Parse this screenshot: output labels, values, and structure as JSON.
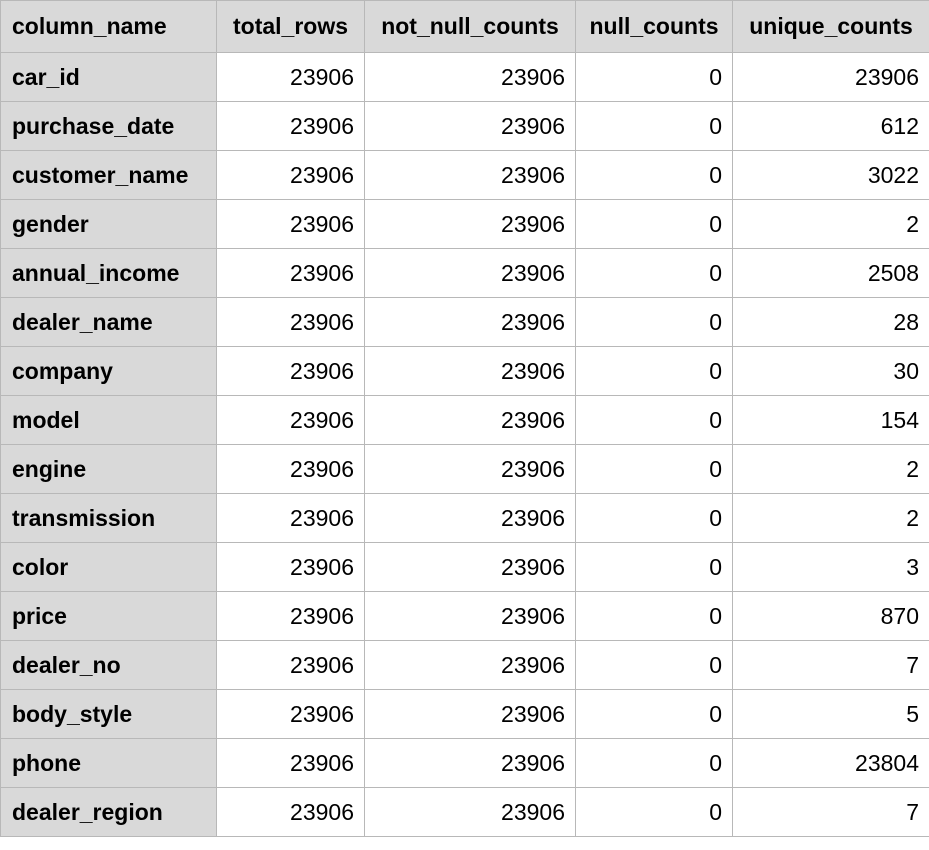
{
  "table": {
    "columns": [
      "column_name",
      "total_rows",
      "not_null_counts",
      "null_counts",
      "unique_counts"
    ],
    "rows": [
      [
        "car_id",
        "23906",
        "23906",
        "0",
        "23906"
      ],
      [
        "purchase_date",
        "23906",
        "23906",
        "0",
        "612"
      ],
      [
        "customer_name",
        "23906",
        "23906",
        "0",
        "3022"
      ],
      [
        "gender",
        "23906",
        "23906",
        "0",
        "2"
      ],
      [
        "annual_income",
        "23906",
        "23906",
        "0",
        "2508"
      ],
      [
        "dealer_name",
        "23906",
        "23906",
        "0",
        "28"
      ],
      [
        "company",
        "23906",
        "23906",
        "0",
        "30"
      ],
      [
        "model",
        "23906",
        "23906",
        "0",
        "154"
      ],
      [
        "engine",
        "23906",
        "23906",
        "0",
        "2"
      ],
      [
        "transmission",
        "23906",
        "23906",
        "0",
        "2"
      ],
      [
        "color",
        "23906",
        "23906",
        "0",
        "3"
      ],
      [
        "price",
        "23906",
        "23906",
        "0",
        "870"
      ],
      [
        "dealer_no",
        "23906",
        "23906",
        "0",
        "7"
      ],
      [
        "body_style",
        "23906",
        "23906",
        "0",
        "5"
      ],
      [
        "phone",
        "23906",
        "23906",
        "0",
        "23804"
      ],
      [
        "dealer_region",
        "23906",
        "23906",
        "0",
        "7"
      ]
    ]
  },
  "colors": {
    "header_bg": "#d9d9d9",
    "cell_bg": "#ffffff",
    "grid_line": "#b8b8b8",
    "text": "#000000"
  }
}
